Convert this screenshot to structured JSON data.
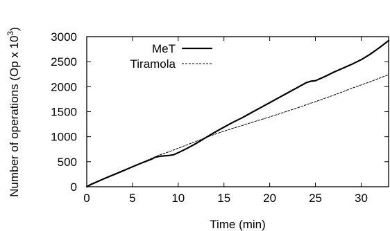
{
  "chart_data": {
    "type": "line",
    "xlabel": "Time (min)",
    "ylabel": "Number of operations (Op x 10",
    "ylabel_sup": "3",
    "ylabel_end": ")",
    "xlim": [
      0,
      33
    ],
    "ylim": [
      0,
      3000
    ],
    "xticks": [
      0,
      5,
      10,
      15,
      20,
      25,
      30
    ],
    "yticks": [
      0,
      500,
      1000,
      1500,
      2000,
      2500,
      3000
    ],
    "grid": false,
    "legend_position": "top-left",
    "series": [
      {
        "name": "MeT",
        "style": "solid",
        "color": "#000000",
        "points": [
          [
            0,
            0
          ],
          [
            0.5,
            50
          ],
          [
            1,
            90
          ],
          [
            2,
            170
          ],
          [
            3,
            245
          ],
          [
            4,
            320
          ],
          [
            5,
            400
          ],
          [
            6,
            475
          ],
          [
            7,
            545
          ],
          [
            7.5,
            590
          ],
          [
            8,
            610
          ],
          [
            9,
            625
          ],
          [
            9.5,
            640
          ],
          [
            10,
            680
          ],
          [
            11,
            770
          ],
          [
            12,
            870
          ],
          [
            13,
            980
          ],
          [
            14,
            1090
          ],
          [
            15,
            1190
          ],
          [
            16,
            1290
          ],
          [
            17,
            1380
          ],
          [
            18,
            1480
          ],
          [
            19,
            1580
          ],
          [
            20,
            1680
          ],
          [
            21,
            1780
          ],
          [
            22,
            1880
          ],
          [
            23,
            1980
          ],
          [
            24,
            2080
          ],
          [
            24.5,
            2110
          ],
          [
            25,
            2120
          ],
          [
            26,
            2200
          ],
          [
            27,
            2290
          ],
          [
            28,
            2370
          ],
          [
            29,
            2450
          ],
          [
            30,
            2540
          ],
          [
            31,
            2650
          ],
          [
            32,
            2780
          ],
          [
            33,
            2920
          ]
        ]
      },
      {
        "name": "Tiramola",
        "style": "dashed",
        "color": "#000000",
        "points": [
          [
            0,
            0
          ],
          [
            1,
            80
          ],
          [
            2,
            165
          ],
          [
            3,
            250
          ],
          [
            4,
            330
          ],
          [
            5,
            400
          ],
          [
            6,
            480
          ],
          [
            7,
            560
          ],
          [
            8,
            640
          ],
          [
            9,
            700
          ],
          [
            10,
            770
          ],
          [
            11,
            840
          ],
          [
            12,
            910
          ],
          [
            13,
            980
          ],
          [
            14,
            1050
          ],
          [
            15,
            1110
          ],
          [
            16,
            1170
          ],
          [
            17,
            1225
          ],
          [
            18,
            1285
          ],
          [
            19,
            1340
          ],
          [
            20,
            1395
          ],
          [
            21,
            1455
          ],
          [
            22,
            1515
          ],
          [
            23,
            1575
          ],
          [
            24,
            1640
          ],
          [
            25,
            1700
          ],
          [
            26,
            1765
          ],
          [
            27,
            1830
          ],
          [
            28,
            1900
          ],
          [
            29,
            1970
          ],
          [
            30,
            2035
          ],
          [
            31,
            2100
          ],
          [
            32,
            2170
          ],
          [
            33,
            2240
          ]
        ]
      }
    ]
  }
}
